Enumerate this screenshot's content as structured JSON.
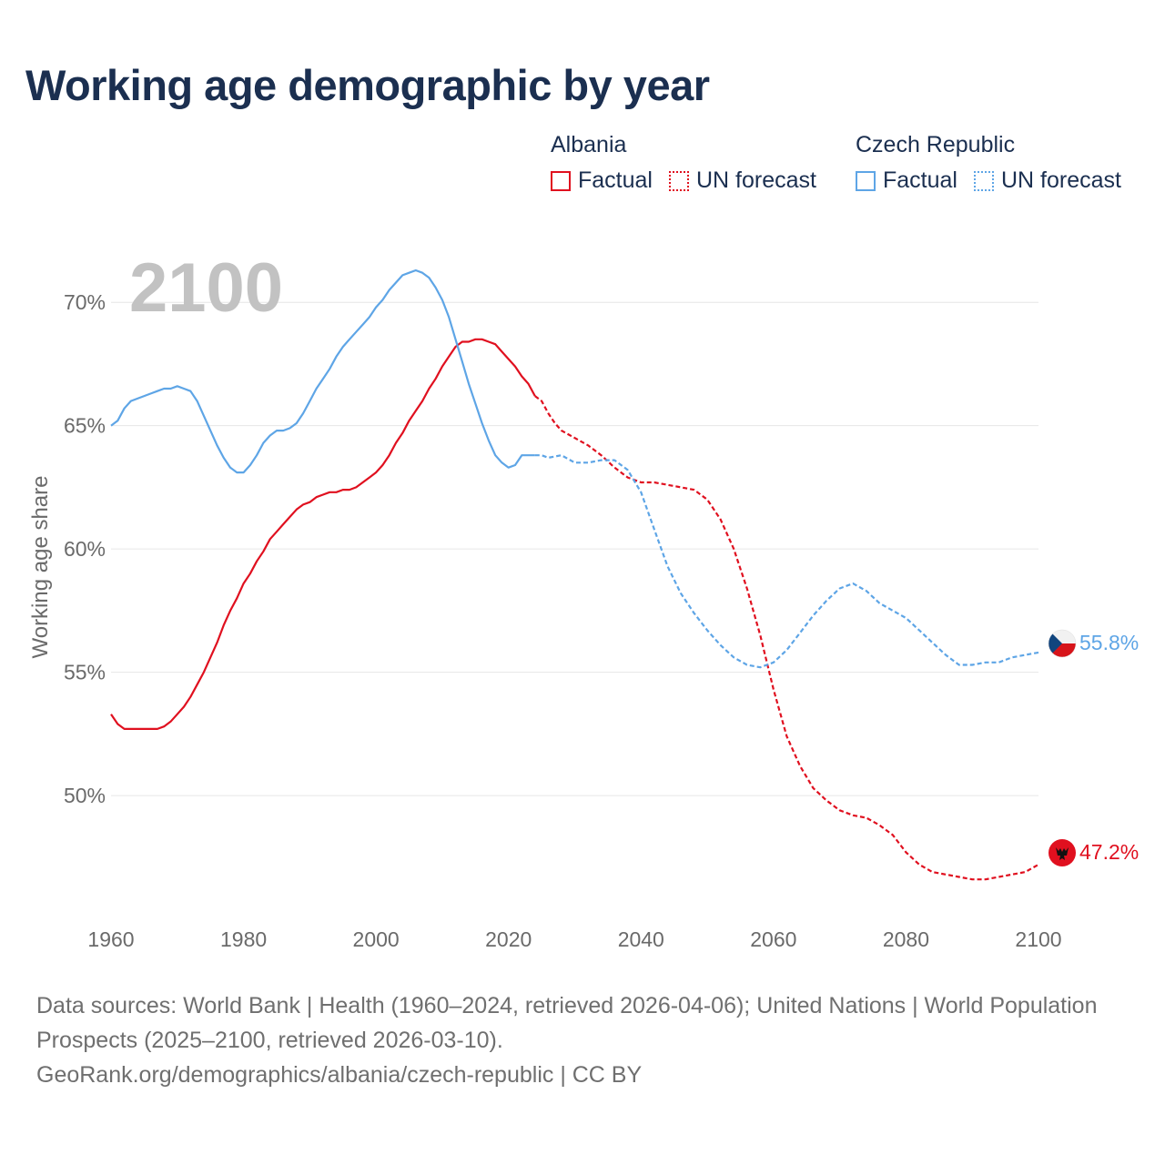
{
  "chart_data": {
    "type": "line",
    "title": "Working age demographic by year",
    "ylabel": "Working age share",
    "xlabel": "",
    "xlim": [
      1960,
      2100
    ],
    "ylim": [
      45.5,
      72
    ],
    "year_label": "2100",
    "x_ticks": [
      "1960",
      "1980",
      "2000",
      "2020",
      "2040",
      "2060",
      "2080",
      "2100"
    ],
    "y_ticks": [
      {
        "value": 50,
        "label": "50%"
      },
      {
        "value": 55,
        "label": "55%"
      },
      {
        "value": 60,
        "label": "60%"
      },
      {
        "value": 65,
        "label": "65%"
      },
      {
        "value": 70,
        "label": "70%"
      }
    ],
    "factual_end_year": 2024,
    "series": [
      {
        "name": "Albania",
        "color": "#e0101f",
        "factual_label": "Factual",
        "forecast_label": "UN forecast",
        "end_label": "47.2%",
        "flag": "albania-flag",
        "points": [
          [
            1960,
            53.3
          ],
          [
            1961,
            52.9
          ],
          [
            1962,
            52.7
          ],
          [
            1964,
            52.7
          ],
          [
            1966,
            52.7
          ],
          [
            1967,
            52.7
          ],
          [
            1968,
            52.8
          ],
          [
            1969,
            53.0
          ],
          [
            1970,
            53.3
          ],
          [
            1971,
            53.6
          ],
          [
            1972,
            54.0
          ],
          [
            1973,
            54.5
          ],
          [
            1974,
            55.0
          ],
          [
            1975,
            55.6
          ],
          [
            1976,
            56.2
          ],
          [
            1977,
            56.9
          ],
          [
            1978,
            57.5
          ],
          [
            1979,
            58.0
          ],
          [
            1980,
            58.6
          ],
          [
            1981,
            59.0
          ],
          [
            1982,
            59.5
          ],
          [
            1983,
            59.9
          ],
          [
            1984,
            60.4
          ],
          [
            1985,
            60.7
          ],
          [
            1986,
            61.0
          ],
          [
            1987,
            61.3
          ],
          [
            1988,
            61.6
          ],
          [
            1989,
            61.8
          ],
          [
            1990,
            61.9
          ],
          [
            1991,
            62.1
          ],
          [
            1992,
            62.2
          ],
          [
            1993,
            62.3
          ],
          [
            1994,
            62.3
          ],
          [
            1995,
            62.4
          ],
          [
            1996,
            62.4
          ],
          [
            1997,
            62.5
          ],
          [
            1998,
            62.7
          ],
          [
            1999,
            62.9
          ],
          [
            2000,
            63.1
          ],
          [
            2001,
            63.4
          ],
          [
            2002,
            63.8
          ],
          [
            2003,
            64.3
          ],
          [
            2004,
            64.7
          ],
          [
            2005,
            65.2
          ],
          [
            2006,
            65.6
          ],
          [
            2007,
            66.0
          ],
          [
            2008,
            66.5
          ],
          [
            2009,
            66.9
          ],
          [
            2010,
            67.4
          ],
          [
            2011,
            67.8
          ],
          [
            2012,
            68.2
          ],
          [
            2013,
            68.4
          ],
          [
            2014,
            68.4
          ],
          [
            2015,
            68.5
          ],
          [
            2016,
            68.5
          ],
          [
            2017,
            68.4
          ],
          [
            2018,
            68.3
          ],
          [
            2019,
            68.0
          ],
          [
            2020,
            67.7
          ],
          [
            2021,
            67.4
          ],
          [
            2022,
            67.0
          ],
          [
            2023,
            66.7
          ],
          [
            2024,
            66.2
          ],
          [
            2025,
            66.0
          ],
          [
            2026,
            65.5
          ],
          [
            2027,
            65.1
          ],
          [
            2028,
            64.8
          ],
          [
            2030,
            64.5
          ],
          [
            2032,
            64.2
          ],
          [
            2034,
            63.8
          ],
          [
            2036,
            63.3
          ],
          [
            2038,
            62.9
          ],
          [
            2040,
            62.7
          ],
          [
            2042,
            62.7
          ],
          [
            2044,
            62.6
          ],
          [
            2046,
            62.5
          ],
          [
            2048,
            62.4
          ],
          [
            2050,
            62.0
          ],
          [
            2052,
            61.2
          ],
          [
            2054,
            60.0
          ],
          [
            2056,
            58.4
          ],
          [
            2058,
            56.5
          ],
          [
            2060,
            54.3
          ],
          [
            2062,
            52.4
          ],
          [
            2064,
            51.2
          ],
          [
            2066,
            50.3
          ],
          [
            2068,
            49.8
          ],
          [
            2070,
            49.4
          ],
          [
            2072,
            49.2
          ],
          [
            2074,
            49.1
          ],
          [
            2076,
            48.8
          ],
          [
            2078,
            48.4
          ],
          [
            2080,
            47.7
          ],
          [
            2082,
            47.2
          ],
          [
            2084,
            46.9
          ],
          [
            2086,
            46.8
          ],
          [
            2088,
            46.7
          ],
          [
            2090,
            46.6
          ],
          [
            2092,
            46.6
          ],
          [
            2094,
            46.7
          ],
          [
            2096,
            46.8
          ],
          [
            2098,
            46.9
          ],
          [
            2100,
            47.2
          ]
        ]
      },
      {
        "name": "Czech Republic",
        "color": "#5ea5e6",
        "factual_label": "Factual",
        "forecast_label": "UN forecast",
        "end_label": "55.8%",
        "flag": "czech-flag",
        "points": [
          [
            1960,
            65.0
          ],
          [
            1961,
            65.2
          ],
          [
            1962,
            65.7
          ],
          [
            1963,
            66.0
          ],
          [
            1964,
            66.1
          ],
          [
            1965,
            66.2
          ],
          [
            1966,
            66.3
          ],
          [
            1967,
            66.4
          ],
          [
            1968,
            66.5
          ],
          [
            1969,
            66.5
          ],
          [
            1970,
            66.6
          ],
          [
            1971,
            66.5
          ],
          [
            1972,
            66.4
          ],
          [
            1973,
            66.0
          ],
          [
            1974,
            65.4
          ],
          [
            1975,
            64.8
          ],
          [
            1976,
            64.2
          ],
          [
            1977,
            63.7
          ],
          [
            1978,
            63.3
          ],
          [
            1979,
            63.1
          ],
          [
            1980,
            63.1
          ],
          [
            1981,
            63.4
          ],
          [
            1982,
            63.8
          ],
          [
            1983,
            64.3
          ],
          [
            1984,
            64.6
          ],
          [
            1985,
            64.8
          ],
          [
            1986,
            64.8
          ],
          [
            1987,
            64.9
          ],
          [
            1988,
            65.1
          ],
          [
            1989,
            65.5
          ],
          [
            1990,
            66.0
          ],
          [
            1991,
            66.5
          ],
          [
            1992,
            66.9
          ],
          [
            1993,
            67.3
          ],
          [
            1994,
            67.8
          ],
          [
            1995,
            68.2
          ],
          [
            1996,
            68.5
          ],
          [
            1997,
            68.8
          ],
          [
            1998,
            69.1
          ],
          [
            1999,
            69.4
          ],
          [
            2000,
            69.8
          ],
          [
            2001,
            70.1
          ],
          [
            2002,
            70.5
          ],
          [
            2003,
            70.8
          ],
          [
            2004,
            71.1
          ],
          [
            2005,
            71.2
          ],
          [
            2006,
            71.3
          ],
          [
            2007,
            71.2
          ],
          [
            2008,
            71.0
          ],
          [
            2009,
            70.6
          ],
          [
            2010,
            70.1
          ],
          [
            2011,
            69.4
          ],
          [
            2012,
            68.5
          ],
          [
            2013,
            67.6
          ],
          [
            2014,
            66.7
          ],
          [
            2015,
            65.9
          ],
          [
            2016,
            65.1
          ],
          [
            2017,
            64.4
          ],
          [
            2018,
            63.8
          ],
          [
            2019,
            63.5
          ],
          [
            2020,
            63.3
          ],
          [
            2021,
            63.4
          ],
          [
            2022,
            63.8
          ],
          [
            2023,
            63.8
          ],
          [
            2024,
            63.8
          ],
          [
            2025,
            63.8
          ],
          [
            2026,
            63.7
          ],
          [
            2028,
            63.8
          ],
          [
            2030,
            63.5
          ],
          [
            2032,
            63.5
          ],
          [
            2034,
            63.6
          ],
          [
            2036,
            63.6
          ],
          [
            2038,
            63.2
          ],
          [
            2040,
            62.3
          ],
          [
            2042,
            60.8
          ],
          [
            2044,
            59.3
          ],
          [
            2046,
            58.2
          ],
          [
            2048,
            57.4
          ],
          [
            2050,
            56.7
          ],
          [
            2052,
            56.1
          ],
          [
            2054,
            55.6
          ],
          [
            2056,
            55.3
          ],
          [
            2058,
            55.2
          ],
          [
            2060,
            55.4
          ],
          [
            2062,
            55.9
          ],
          [
            2064,
            56.6
          ],
          [
            2066,
            57.3
          ],
          [
            2068,
            57.9
          ],
          [
            2070,
            58.4
          ],
          [
            2072,
            58.6
          ],
          [
            2074,
            58.3
          ],
          [
            2076,
            57.8
          ],
          [
            2078,
            57.5
          ],
          [
            2080,
            57.2
          ],
          [
            2082,
            56.7
          ],
          [
            2084,
            56.2
          ],
          [
            2086,
            55.7
          ],
          [
            2088,
            55.3
          ],
          [
            2090,
            55.3
          ],
          [
            2092,
            55.4
          ],
          [
            2094,
            55.4
          ],
          [
            2096,
            55.6
          ],
          [
            2098,
            55.7
          ],
          [
            2100,
            55.8
          ]
        ]
      }
    ]
  },
  "footer": {
    "sources": "Data sources: World Bank | Health (1960–2024, retrieved 2026-04-06); United Nations | World Population Prospects (2025–2100, retrieved 2026-03-10).",
    "link": "GeoRank.org/demographics/albania/czech-republic | CC BY"
  }
}
